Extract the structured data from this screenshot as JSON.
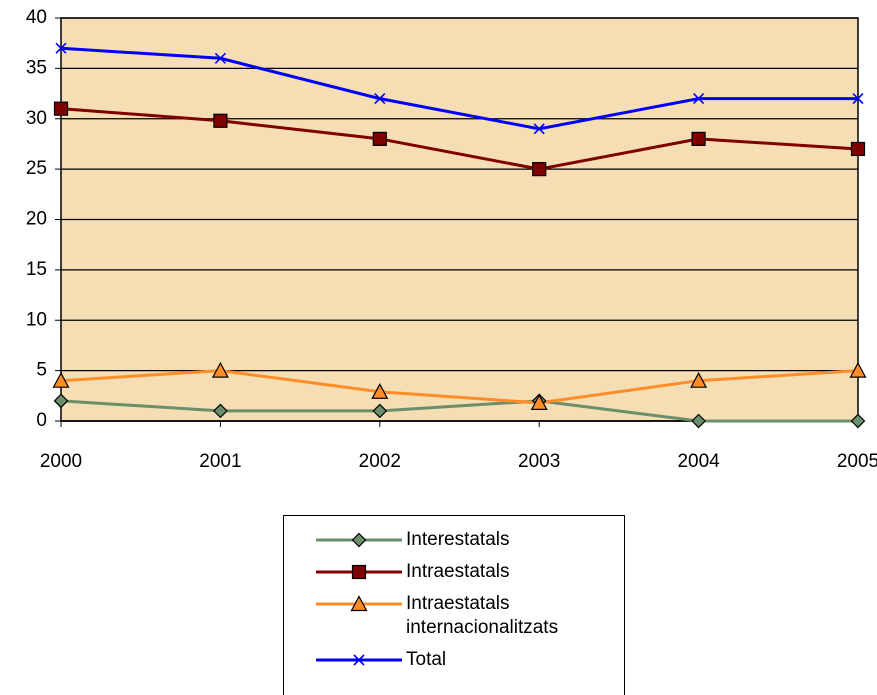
{
  "chart_data": {
    "type": "line",
    "x": [
      2000,
      2001,
      2002,
      2003,
      2004,
      2005
    ],
    "xlim": [
      2000,
      2005
    ],
    "xticks": [
      2000,
      2001,
      2002,
      2003,
      2004,
      2005
    ],
    "ylim": [
      0,
      40
    ],
    "yticks": [
      0,
      5,
      10,
      15,
      20,
      25,
      30,
      35,
      40
    ],
    "grid": true,
    "background": "#f5deb3",
    "series": [
      {
        "name": "Interestatals",
        "color": "#6b8e6b",
        "marker": "diamond",
        "values": [
          2,
          1,
          1,
          2,
          0,
          0
        ]
      },
      {
        "name": "Intraestatals",
        "color": "#800000",
        "marker": "square",
        "values": [
          31,
          29.8,
          28,
          25,
          28,
          27
        ]
      },
      {
        "name": "Intraestatals internacionalitzats",
        "color": "#ff8c26",
        "marker": "triangle",
        "values": [
          4,
          5,
          2.9,
          1.8,
          4,
          5
        ]
      },
      {
        "name": "Total",
        "color": "#0000ff",
        "marker": "x",
        "values": [
          37,
          36,
          32,
          29,
          32,
          32
        ]
      }
    ],
    "legend": "bottom"
  }
}
